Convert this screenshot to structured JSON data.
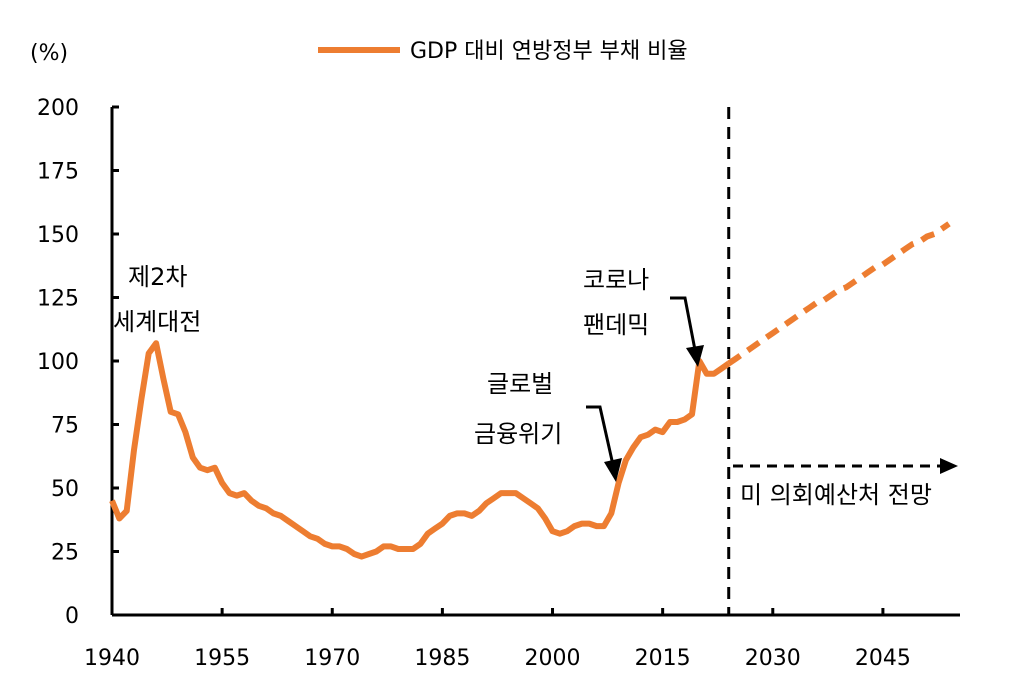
{
  "chart_data": {
    "type": "line",
    "title": "",
    "ylabel": "(%)",
    "xlabel": "",
    "xlim": [
      1940,
      2055.5
    ],
    "ylim": [
      0,
      200
    ],
    "x_ticks": [
      1940,
      1955,
      1970,
      1985,
      2000,
      2015,
      2030,
      2045
    ],
    "x_tick_labels": [
      "1940",
      "1955",
      "1970",
      "1985",
      "2000",
      "2015",
      "2030",
      "2045"
    ],
    "y_ticks": [
      0,
      25,
      50,
      75,
      100,
      125,
      150,
      175,
      200
    ],
    "y_tick_labels": [
      "0",
      "25",
      "50",
      "75",
      "100",
      "125",
      "150",
      "175",
      "200"
    ],
    "grid": false,
    "legend": {
      "position": "top",
      "label": "GDP 대비 연방정부 부채 비율"
    },
    "color": "#ED7D31",
    "series": [
      {
        "name": "GDP 대비 연방정부 부채 비율",
        "style": "solid",
        "x": [
          1940,
          1941,
          1942,
          1943,
          1944,
          1945,
          1946,
          1947,
          1948,
          1949,
          1950,
          1951,
          1952,
          1953,
          1954,
          1955,
          1956,
          1957,
          1958,
          1959,
          1960,
          1961,
          1962,
          1963,
          1964,
          1965,
          1966,
          1967,
          1968,
          1969,
          1970,
          1971,
          1972,
          1973,
          1974,
          1975,
          1976,
          1977,
          1978,
          1979,
          1980,
          1981,
          1982,
          1983,
          1984,
          1985,
          1986,
          1987,
          1988,
          1989,
          1990,
          1991,
          1992,
          1993,
          1994,
          1995,
          1996,
          1997,
          1998,
          1999,
          2000,
          2001,
          2002,
          2003,
          2004,
          2005,
          2006,
          2007,
          2008,
          2009,
          2010,
          2011,
          2012,
          2013,
          2014,
          2015,
          2016,
          2017,
          2018,
          2019,
          2020,
          2021,
          2022,
          2023,
          2024
        ],
        "y": [
          45,
          38,
          41,
          65,
          85,
          103,
          107,
          93,
          80,
          79,
          72,
          62,
          58,
          57,
          58,
          52,
          48,
          47,
          48,
          45,
          43,
          42,
          40,
          39,
          37,
          35,
          33,
          31,
          30,
          28,
          27,
          27,
          26,
          24,
          23,
          24,
          25,
          27,
          27,
          26,
          26,
          26,
          28,
          32,
          34,
          36,
          39,
          40,
          40,
          39,
          41,
          44,
          46,
          48,
          48,
          48,
          46,
          44,
          42,
          38,
          33,
          32,
          33,
          35,
          36,
          36,
          35,
          35,
          40,
          52,
          61,
          66,
          70,
          71,
          73,
          72,
          76,
          76,
          77,
          79,
          100,
          95,
          95,
          97,
          99
        ]
      },
      {
        "name": "미 의회예산처 전망",
        "style": "dashed",
        "x": [
          2024,
          2025,
          2026,
          2027,
          2028,
          2029,
          2030,
          2031,
          2032,
          2033,
          2034,
          2035,
          2036,
          2037,
          2038,
          2039,
          2040,
          2041,
          2042,
          2043,
          2044,
          2045,
          2046,
          2047,
          2048,
          2049,
          2050,
          2051,
          2052,
          2053,
          2054
        ],
        "y": [
          99,
          101,
          103,
          105,
          107,
          109,
          111,
          113,
          115,
          117,
          119,
          121,
          123,
          124,
          126,
          128,
          129,
          131,
          133,
          135,
          137,
          138,
          140,
          142,
          144,
          146,
          147,
          149,
          150,
          152,
          154
        ]
      }
    ],
    "projection_start": 2024,
    "annotations": {
      "ww2_line1": "제2차",
      "ww2_line2": "세계대전",
      "gfc_line1": "글로벌",
      "gfc_line2": "금융위기",
      "covid_line1": "코로나",
      "covid_line2": "팬데믹",
      "cbo": "미 의회예산처 전망"
    }
  }
}
